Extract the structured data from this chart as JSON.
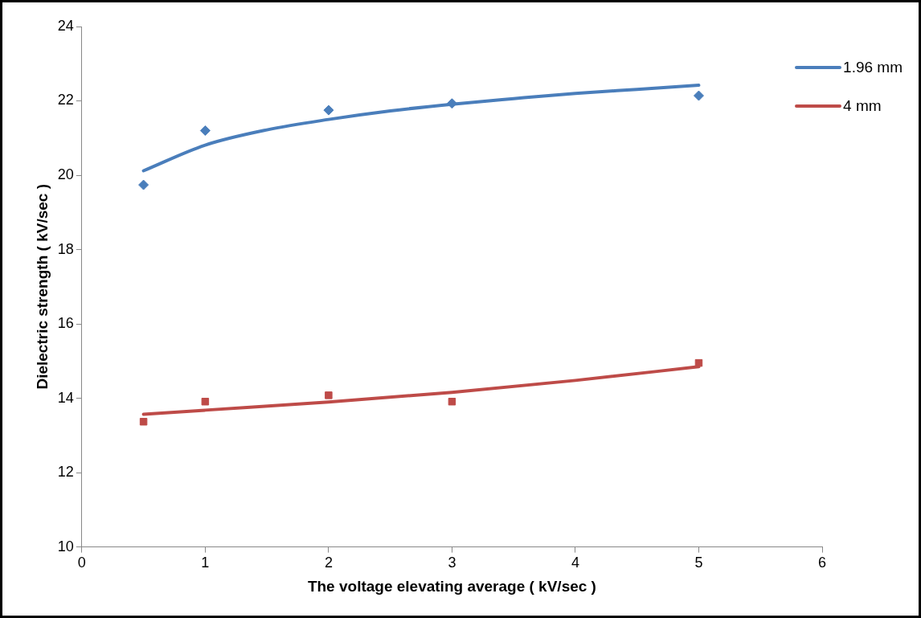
{
  "chart_data": {
    "type": "scatter",
    "xlabel": "The voltage elevating average ( kV/sec )",
    "ylabel": "Dielectric strength ( kV/sec )",
    "x": [
      0.5,
      1,
      2,
      3,
      5
    ],
    "series": [
      {
        "color": "#4a7ebb",
        "marker": "diamond",
        "values": [
          19.74,
          21.2,
          21.75,
          21.93,
          22.14
        ]
      },
      {
        "color": "#be4b48",
        "marker": "square",
        "values": [
          13.37,
          13.91,
          14.08,
          13.91,
          14.95
        ]
      },
      {
        "type": "line",
        "name": "1.96 mm",
        "color": "#4a7ebb",
        "marker": "none",
        "x": [
          0.5,
          1,
          1.5,
          2,
          2.5,
          3,
          3.5,
          4,
          4.5,
          5
        ],
        "values": [
          20.12,
          20.81,
          21.22,
          21.5,
          21.73,
          21.91,
          22.06,
          22.2,
          22.31,
          22.42
        ]
      },
      {
        "type": "line",
        "name": "4 mm",
        "color": "#be4b48",
        "marker": "none",
        "x": [
          0.5,
          1,
          2,
          3,
          4,
          5
        ],
        "values": [
          13.57,
          13.68,
          13.9,
          14.16,
          14.48,
          14.85
        ]
      }
    ],
    "xlim": [
      0,
      6
    ],
    "xticks": [
      0,
      1,
      2,
      3,
      4,
      5,
      6
    ],
    "ylim": [
      10,
      24
    ],
    "yticks": [
      10,
      12,
      14,
      16,
      18,
      20,
      22,
      24
    ],
    "grid": false,
    "legend": "top right"
  }
}
